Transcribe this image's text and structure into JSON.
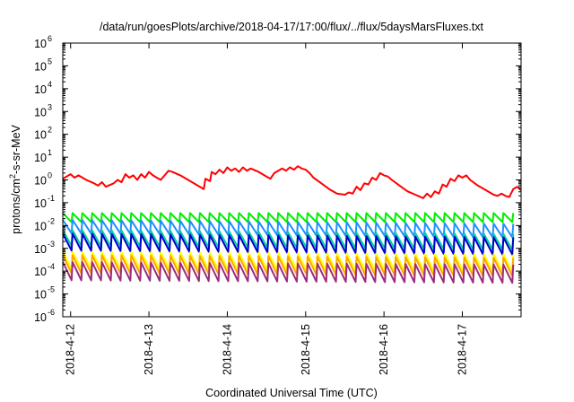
{
  "chart_data": {
    "type": "line",
    "title": "/data/run/goesPlots/archive/2018-04-17/17:00/flux/../flux/5daysMarsFluxes.txt",
    "xlabel": "Coordinated Universal Time (UTC)",
    "ylabel": "protons/cm²-s-sr-MeV",
    "ylabel_parts": {
      "base": "protons/cm",
      "sup": "2",
      "rest": "-s-sr-MeV"
    },
    "yscale": "log",
    "ylim_exp": [
      -6,
      6
    ],
    "y_ticks": [
      {
        "base": "10",
        "exp": "-6"
      },
      {
        "base": "10",
        "exp": "-5"
      },
      {
        "base": "10",
        "exp": "-4"
      },
      {
        "base": "10",
        "exp": "-3"
      },
      {
        "base": "10",
        "exp": "-2"
      },
      {
        "base": "10",
        "exp": "-1"
      },
      {
        "base": "10",
        "exp": "0"
      },
      {
        "base": "10",
        "exp": "1"
      },
      {
        "base": "10",
        "exp": "2"
      },
      {
        "base": "10",
        "exp": "3"
      },
      {
        "base": "10",
        "exp": "4"
      },
      {
        "base": "10",
        "exp": "5"
      },
      {
        "base": "10",
        "exp": "6"
      }
    ],
    "xlim_day": [
      -0.1,
      5.75
    ],
    "x_ticks": [
      {
        "label": "2018-4-12",
        "day": 0
      },
      {
        "label": "2018-4-13",
        "day": 1
      },
      {
        "label": "2018-4-14",
        "day": 2
      },
      {
        "label": "2018-4-15",
        "day": 3
      },
      {
        "label": "2018-4-16",
        "day": 4
      },
      {
        "label": "2018-4-17",
        "day": 5
      }
    ],
    "grid": false,
    "legend": "none",
    "series": [
      {
        "color": "#ff0000",
        "log10_values": [
          [
            -0.1,
            0.05
          ],
          [
            0.0,
            0.25
          ],
          [
            0.05,
            0.1
          ],
          [
            0.1,
            0.2
          ],
          [
            0.2,
            0.0
          ],
          [
            0.3,
            -0.15
          ],
          [
            0.35,
            -0.25
          ],
          [
            0.4,
            -0.1
          ],
          [
            0.45,
            -0.3
          ],
          [
            0.55,
            -0.15
          ],
          [
            0.6,
            0.0
          ],
          [
            0.65,
            -0.1
          ],
          [
            0.7,
            0.25
          ],
          [
            0.75,
            0.1
          ],
          [
            0.8,
            0.2
          ],
          [
            0.85,
            0.0
          ],
          [
            0.9,
            0.25
          ],
          [
            0.95,
            0.1
          ],
          [
            1.0,
            0.35
          ],
          [
            1.05,
            0.2
          ],
          [
            1.1,
            0.1
          ],
          [
            1.15,
            0.0
          ],
          [
            1.2,
            0.2
          ],
          [
            1.25,
            0.4
          ],
          [
            1.3,
            0.35
          ],
          [
            1.4,
            0.2
          ],
          [
            1.5,
            0.0
          ],
          [
            1.6,
            -0.2
          ],
          [
            1.7,
            -0.4
          ],
          [
            1.72,
            0.05
          ],
          [
            1.78,
            -0.05
          ],
          [
            1.8,
            0.35
          ],
          [
            1.85,
            0.25
          ],
          [
            1.9,
            0.45
          ],
          [
            1.95,
            0.3
          ],
          [
            2.0,
            0.55
          ],
          [
            2.05,
            0.4
          ],
          [
            2.1,
            0.5
          ],
          [
            2.15,
            0.35
          ],
          [
            2.2,
            0.55
          ],
          [
            2.25,
            0.4
          ],
          [
            2.3,
            0.5
          ],
          [
            2.4,
            0.35
          ],
          [
            2.5,
            0.15
          ],
          [
            2.55,
            0.05
          ],
          [
            2.6,
            0.3
          ],
          [
            2.7,
            0.5
          ],
          [
            2.75,
            0.4
          ],
          [
            2.8,
            0.55
          ],
          [
            2.85,
            0.45
          ],
          [
            2.9,
            0.6
          ],
          [
            2.95,
            0.5
          ],
          [
            3.0,
            0.45
          ],
          [
            3.05,
            0.3
          ],
          [
            3.1,
            0.1
          ],
          [
            3.2,
            -0.15
          ],
          [
            3.3,
            -0.4
          ],
          [
            3.4,
            -0.6
          ],
          [
            3.5,
            -0.65
          ],
          [
            3.55,
            -0.55
          ],
          [
            3.6,
            -0.6
          ],
          [
            3.65,
            -0.3
          ],
          [
            3.7,
            -0.45
          ],
          [
            3.75,
            -0.15
          ],
          [
            3.8,
            -0.2
          ],
          [
            3.85,
            0.1
          ],
          [
            3.9,
            0.0
          ],
          [
            3.95,
            0.3
          ],
          [
            4.0,
            0.2
          ],
          [
            4.05,
            0.15
          ],
          [
            4.1,
            0.0
          ],
          [
            4.2,
            -0.25
          ],
          [
            4.3,
            -0.5
          ],
          [
            4.4,
            -0.65
          ],
          [
            4.5,
            -0.8
          ],
          [
            4.55,
            -0.6
          ],
          [
            4.6,
            -0.75
          ],
          [
            4.65,
            -0.5
          ],
          [
            4.7,
            -0.6
          ],
          [
            4.75,
            -0.2
          ],
          [
            4.8,
            -0.3
          ],
          [
            4.85,
            0.05
          ],
          [
            4.9,
            -0.05
          ],
          [
            4.95,
            0.2
          ],
          [
            5.0,
            0.1
          ],
          [
            5.05,
            0.2
          ],
          [
            5.1,
            0.0
          ],
          [
            5.2,
            -0.25
          ],
          [
            5.3,
            -0.45
          ],
          [
            5.4,
            -0.65
          ],
          [
            5.45,
            -0.7
          ],
          [
            5.5,
            -0.6
          ],
          [
            5.55,
            -0.7
          ],
          [
            5.6,
            -0.75
          ],
          [
            5.65,
            -0.4
          ],
          [
            5.7,
            -0.3
          ],
          [
            5.75,
            -0.45
          ]
        ]
      },
      {
        "color": "#00ee00",
        "sawtooth": {
          "period": 0.125,
          "high": -1.45,
          "low": -1.85,
          "slope": 0.0
        }
      },
      {
        "color": "#1e90ff",
        "sawtooth": {
          "period": 0.125,
          "high": -1.75,
          "low": -2.35,
          "slope": -0.03
        }
      },
      {
        "color": "#00d0a0",
        "sawtooth": {
          "period": 0.125,
          "high": -2.2,
          "low": -2.9,
          "slope": -0.03
        }
      },
      {
        "color": "#0000cc",
        "sawtooth": {
          "period": 0.125,
          "high": -2.35,
          "low": -3.1,
          "slope": -0.03
        }
      },
      {
        "color": "#ffff00",
        "sawtooth": {
          "period": 0.125,
          "high": -3.15,
          "low": -3.9,
          "slope": -0.02
        }
      },
      {
        "color": "#ffa500",
        "sawtooth": {
          "period": 0.125,
          "high": -3.3,
          "low": -4.1,
          "slope": -0.02
        }
      },
      {
        "color": "#9c2c7c",
        "sawtooth": {
          "period": 0.125,
          "high": -3.6,
          "low": -4.4,
          "slope": -0.02
        }
      }
    ]
  }
}
